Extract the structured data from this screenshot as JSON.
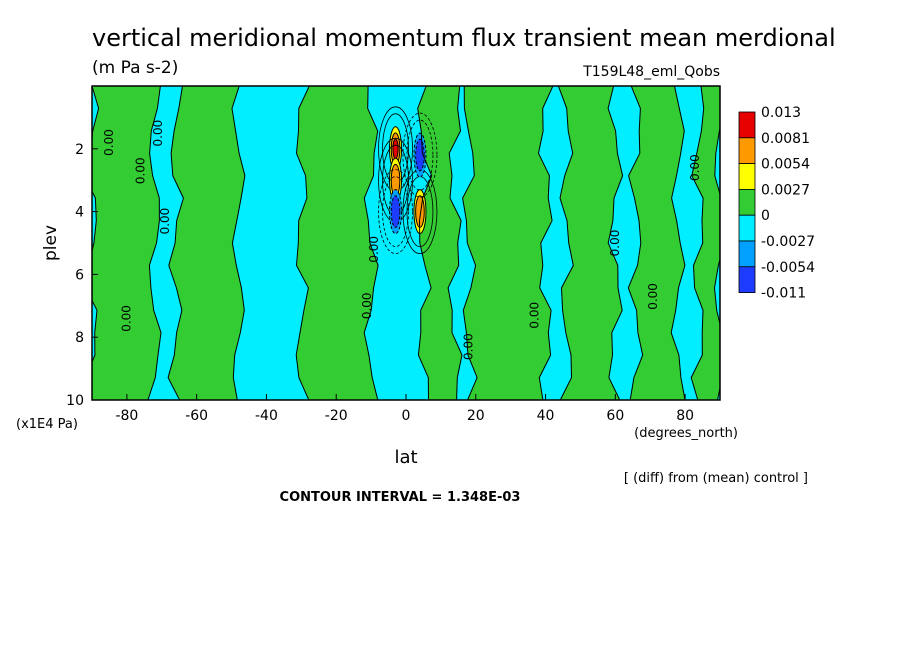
{
  "chart_data": {
    "type": "heatmap",
    "title": "vertical meridional momentum flux transient mean merdional",
    "units": "(m Pa s-2)",
    "dataset": "T159L48_eml_Qobs",
    "xlabel": "lat",
    "x_units": "(degrees_north)",
    "ylabel": "plev",
    "y_units": "(x1E4 Pa)",
    "xlim": [
      -90,
      90
    ],
    "ylim": [
      10,
      0
    ],
    "x_ticks": [
      -80,
      -60,
      -40,
      -20,
      0,
      20,
      40,
      60,
      80
    ],
    "x_tick_labels": [
      "-80",
      "-60",
      "-40",
      "-20",
      "0",
      "20",
      "40",
      "60",
      "80"
    ],
    "y_ticks": [
      2,
      4,
      6,
      8,
      10
    ],
    "y_tick_labels": [
      "2",
      "4",
      "6",
      "8",
      "10"
    ],
    "note": "[ (diff) from (mean) control ]",
    "contour_interval": "CONTOUR INTERVAL = 1.348E-03",
    "contour_label": "0.00",
    "legend": {
      "labels": [
        "0.013",
        "0.0081",
        "0.0054",
        "0.0027",
        "0",
        "-0.0027",
        "-0.0054",
        "-0.011"
      ],
      "colors": [
        "#e60000",
        "#ff9900",
        "#ffff00",
        "#33cc33",
        "#00eeff",
        "#00a0ff",
        "#1e3cff"
      ]
    },
    "colors": {
      "positive_weak": "#33cc33",
      "negative_weak": "#00eeff",
      "pos_1": "#ffff00",
      "pos_2": "#ff9900",
      "pos_3": "#e60000",
      "neg_1": "#00a0ff",
      "neg_2": "#1e3cff"
    },
    "green_bands": [
      {
        "lat_min": -90,
        "lat_max": -72
      },
      {
        "lat_min": -66,
        "lat_max": -48
      },
      {
        "lat_min": -30,
        "lat_max": -10
      },
      {
        "lat_min": 5,
        "lat_max": 14
      },
      {
        "lat_min": 18,
        "lat_max": 40
      },
      {
        "lat_min": 46,
        "lat_max": 60
      },
      {
        "lat_min": 66,
        "lat_max": 78
      },
      {
        "lat_min": 84,
        "lat_max": 90
      }
    ],
    "extrema": [
      {
        "lat": -3,
        "plev": 2.0,
        "value": 0.013
      },
      {
        "lat": -3,
        "plev": 3.0,
        "value": 0.0054
      },
      {
        "lat": 4,
        "plev": 4.0,
        "value": 0.0054
      },
      {
        "lat": -3,
        "plev": 4.0,
        "value": -0.011
      },
      {
        "lat": 4,
        "plev": 2.2,
        "value": -0.0054
      }
    ]
  }
}
